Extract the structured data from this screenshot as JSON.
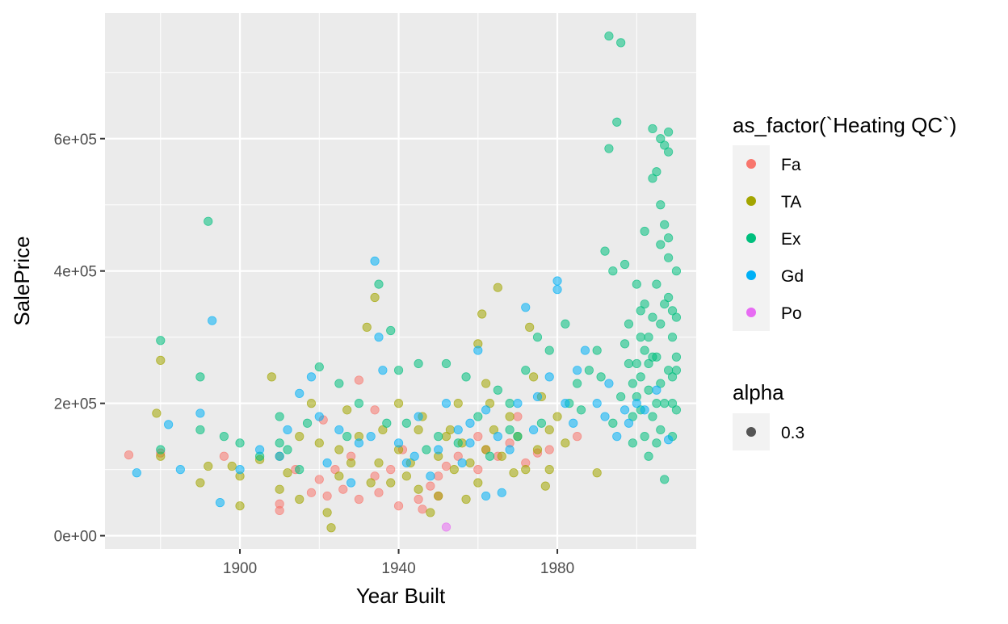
{
  "chart_data": {
    "type": "scatter",
    "title": "",
    "xlabel": "Year Built",
    "ylabel": "SalePrice",
    "xlim": [
      1866,
      2015
    ],
    "ylim": [
      -20000,
      790000
    ],
    "x_ticks": [
      {
        "value": 1900,
        "label": "1900"
      },
      {
        "value": 1940,
        "label": "1940"
      },
      {
        "value": 1980,
        "label": "1980"
      }
    ],
    "y_ticks": [
      {
        "value": 0,
        "label": "0e+00"
      },
      {
        "value": 200000,
        "label": "2e+05"
      },
      {
        "value": 400000,
        "label": "4e+05"
      },
      {
        "value": 600000,
        "label": "6e+05"
      }
    ],
    "grid": true,
    "point_alpha": 0.3,
    "legend": {
      "placement": "right",
      "color_title": "as_factor(`Heating QC`)",
      "alpha_title": "alpha",
      "alpha_value": "0.3",
      "alpha_color": "#000000"
    },
    "series": [
      {
        "name": "Fa",
        "color": "#F8766D",
        "points": [
          [
            1872,
            122000
          ],
          [
            1880,
            125000
          ],
          [
            1896,
            120000
          ],
          [
            1910,
            38000
          ],
          [
            1910,
            48000
          ],
          [
            1914,
            100000
          ],
          [
            1918,
            65000
          ],
          [
            1920,
            85000
          ],
          [
            1921,
            175000
          ],
          [
            1922,
            60000
          ],
          [
            1924,
            100000
          ],
          [
            1926,
            70000
          ],
          [
            1928,
            120000
          ],
          [
            1930,
            55000
          ],
          [
            1934,
            90000
          ],
          [
            1935,
            65000
          ],
          [
            1938,
            100000
          ],
          [
            1940,
            45000
          ],
          [
            1941,
            130000
          ],
          [
            1945,
            55000
          ],
          [
            1946,
            40000
          ],
          [
            1948,
            75000
          ],
          [
            1950,
            90000
          ],
          [
            1952,
            105000
          ],
          [
            1955,
            120000
          ],
          [
            1960,
            100000
          ],
          [
            1962,
            130000
          ],
          [
            1965,
            120000
          ],
          [
            1968,
            140000
          ],
          [
            1972,
            110000
          ],
          [
            1975,
            125000
          ],
          [
            1978,
            130000
          ],
          [
            1985,
            150000
          ],
          [
            1934,
            190000
          ],
          [
            1930,
            235000
          ],
          [
            1950,
            60000
          ],
          [
            1960,
            150000
          ],
          [
            1970,
            180000
          ]
        ]
      },
      {
        "name": "TA",
        "color": "#A3A500",
        "points": [
          [
            1880,
            265000
          ],
          [
            1879,
            185000
          ],
          [
            1880,
            120000
          ],
          [
            1890,
            80000
          ],
          [
            1892,
            105000
          ],
          [
            1898,
            105000
          ],
          [
            1900,
            45000
          ],
          [
            1900,
            90000
          ],
          [
            1908,
            240000
          ],
          [
            1910,
            70000
          ],
          [
            1910,
            120000
          ],
          [
            1915,
            150000
          ],
          [
            1920,
            140000
          ],
          [
            1922,
            35000
          ],
          [
            1923,
            12000
          ],
          [
            1925,
            90000
          ],
          [
            1928,
            110000
          ],
          [
            1930,
            150000
          ],
          [
            1932,
            315000
          ],
          [
            1934,
            360000
          ],
          [
            1935,
            110000
          ],
          [
            1936,
            160000
          ],
          [
            1938,
            80000
          ],
          [
            1940,
            130000
          ],
          [
            1940,
            200000
          ],
          [
            1942,
            90000
          ],
          [
            1945,
            70000
          ],
          [
            1946,
            180000
          ],
          [
            1948,
            35000
          ],
          [
            1950,
            60000
          ],
          [
            1950,
            120000
          ],
          [
            1952,
            150000
          ],
          [
            1954,
            100000
          ],
          [
            1955,
            200000
          ],
          [
            1956,
            140000
          ],
          [
            1958,
            110000
          ],
          [
            1960,
            290000
          ],
          [
            1961,
            335000
          ],
          [
            1962,
            130000
          ],
          [
            1964,
            160000
          ],
          [
            1965,
            375000
          ],
          [
            1966,
            120000
          ],
          [
            1968,
            180000
          ],
          [
            1970,
            150000
          ],
          [
            1972,
            100000
          ],
          [
            1973,
            315000
          ],
          [
            1975,
            130000
          ],
          [
            1976,
            210000
          ],
          [
            1978,
            160000
          ],
          [
            1978,
            100000
          ],
          [
            1980,
            180000
          ],
          [
            1982,
            140000
          ],
          [
            1990,
            95000
          ],
          [
            1960,
            80000
          ],
          [
            1945,
            160000
          ],
          [
            1925,
            130000
          ],
          [
            1915,
            55000
          ],
          [
            1912,
            95000
          ],
          [
            1918,
            200000
          ],
          [
            1957,
            55000
          ],
          [
            1962,
            230000
          ],
          [
            1969,
            95000
          ],
          [
            1974,
            240000
          ],
          [
            1953,
            160000
          ],
          [
            1943,
            110000
          ],
          [
            1933,
            80000
          ],
          [
            1927,
            190000
          ],
          [
            1905,
            115000
          ],
          [
            1963,
            200000
          ],
          [
            1977,
            75000
          ]
        ]
      },
      {
        "name": "Ex",
        "color": "#00BF7D",
        "points": [
          [
            1880,
            295000
          ],
          [
            1880,
            130000
          ],
          [
            1890,
            240000
          ],
          [
            1890,
            160000
          ],
          [
            1892,
            475000
          ],
          [
            1896,
            150000
          ],
          [
            1900,
            140000
          ],
          [
            1905,
            120000
          ],
          [
            1910,
            140000
          ],
          [
            1910,
            180000
          ],
          [
            1915,
            100000
          ],
          [
            1920,
            255000
          ],
          [
            1925,
            230000
          ],
          [
            1930,
            200000
          ],
          [
            1935,
            380000
          ],
          [
            1938,
            310000
          ],
          [
            1940,
            250000
          ],
          [
            1942,
            170000
          ],
          [
            1945,
            260000
          ],
          [
            1950,
            150000
          ],
          [
            1952,
            260000
          ],
          [
            1955,
            140000
          ],
          [
            1960,
            180000
          ],
          [
            1965,
            220000
          ],
          [
            1968,
            200000
          ],
          [
            1970,
            150000
          ],
          [
            1972,
            250000
          ],
          [
            1975,
            300000
          ],
          [
            1978,
            280000
          ],
          [
            1982,
            320000
          ],
          [
            1985,
            230000
          ],
          [
            1988,
            250000
          ],
          [
            1990,
            280000
          ],
          [
            1992,
            430000
          ],
          [
            1993,
            585000
          ],
          [
            1993,
            755000
          ],
          [
            1994,
            400000
          ],
          [
            1995,
            625000
          ],
          [
            1996,
            745000
          ],
          [
            1997,
            410000
          ],
          [
            1998,
            260000
          ],
          [
            1999,
            180000
          ],
          [
            2000,
            380000
          ],
          [
            2001,
            300000
          ],
          [
            2002,
            460000
          ],
          [
            2003,
            220000
          ],
          [
            2004,
            540000
          ],
          [
            2004,
            615000
          ],
          [
            2005,
            550000
          ],
          [
            2005,
            270000
          ],
          [
            2006,
            600000
          ],
          [
            2006,
            500000
          ],
          [
            2007,
            590000
          ],
          [
            2007,
            350000
          ],
          [
            2008,
            610000
          ],
          [
            2008,
            580000
          ],
          [
            2008,
            450000
          ],
          [
            2009,
            200000
          ],
          [
            2009,
            300000
          ],
          [
            2010,
            400000
          ],
          [
            2010,
            250000
          ],
          [
            2010,
            190000
          ],
          [
            2002,
            150000
          ],
          [
            1998,
            320000
          ],
          [
            2006,
            160000
          ],
          [
            2003,
            120000
          ],
          [
            2007,
            85000
          ],
          [
            2009,
            150000
          ],
          [
            1996,
            210000
          ],
          [
            2004,
            330000
          ],
          [
            2001,
            240000
          ],
          [
            2008,
            420000
          ],
          [
            2005,
            380000
          ],
          [
            1999,
            140000
          ],
          [
            2010,
            270000
          ],
          [
            2006,
            230000
          ],
          [
            1994,
            170000
          ],
          [
            2003,
            300000
          ],
          [
            2007,
            200000
          ],
          [
            2000,
            260000
          ],
          [
            2009,
            340000
          ],
          [
            2004,
            180000
          ],
          [
            2006,
            440000
          ],
          [
            2002,
            350000
          ],
          [
            1997,
            290000
          ],
          [
            2008,
            250000
          ],
          [
            2005,
            140000
          ],
          [
            2001,
            190000
          ],
          [
            2010,
            330000
          ],
          [
            1983,
            200000
          ],
          [
            1968,
            160000
          ],
          [
            1957,
            240000
          ],
          [
            1947,
            130000
          ],
          [
            1937,
            170000
          ],
          [
            1927,
            150000
          ],
          [
            1917,
            170000
          ],
          [
            1912,
            130000
          ],
          [
            1963,
            120000
          ],
          [
            1976,
            170000
          ],
          [
            1986,
            190000
          ],
          [
            1991,
            240000
          ],
          [
            2000,
            210000
          ],
          [
            2004,
            270000
          ],
          [
            2006,
            320000
          ],
          [
            2007,
            470000
          ],
          [
            2008,
            360000
          ],
          [
            2009,
            240000
          ],
          [
            2003,
            260000
          ],
          [
            2005,
            200000
          ],
          [
            2002,
            280000
          ],
          [
            2001,
            340000
          ],
          [
            1999,
            230000
          ]
        ]
      },
      {
        "name": "Gd",
        "color": "#00B0F6",
        "points": [
          [
            1874,
            95000
          ],
          [
            1882,
            168000
          ],
          [
            1885,
            100000
          ],
          [
            1890,
            185000
          ],
          [
            1893,
            325000
          ],
          [
            1895,
            50000
          ],
          [
            1900,
            100000
          ],
          [
            1905,
            130000
          ],
          [
            1910,
            120000
          ],
          [
            1915,
            215000
          ],
          [
            1918,
            240000
          ],
          [
            1920,
            180000
          ],
          [
            1925,
            160000
          ],
          [
            1930,
            140000
          ],
          [
            1934,
            415000
          ],
          [
            1935,
            300000
          ],
          [
            1936,
            250000
          ],
          [
            1940,
            140000
          ],
          [
            1942,
            110000
          ],
          [
            1945,
            180000
          ],
          [
            1950,
            130000
          ],
          [
            1952,
            200000
          ],
          [
            1955,
            160000
          ],
          [
            1958,
            170000
          ],
          [
            1960,
            280000
          ],
          [
            1962,
            190000
          ],
          [
            1965,
            150000
          ],
          [
            1966,
            65000
          ],
          [
            1970,
            200000
          ],
          [
            1972,
            345000
          ],
          [
            1975,
            210000
          ],
          [
            1978,
            240000
          ],
          [
            1980,
            385000
          ],
          [
            1980,
            372000
          ],
          [
            1982,
            200000
          ],
          [
            1985,
            250000
          ],
          [
            1987,
            280000
          ],
          [
            1990,
            200000
          ],
          [
            1992,
            180000
          ],
          [
            1995,
            150000
          ],
          [
            1998,
            170000
          ],
          [
            2000,
            200000
          ],
          [
            2002,
            190000
          ],
          [
            2005,
            220000
          ],
          [
            2008,
            145000
          ],
          [
            1962,
            60000
          ],
          [
            1948,
            90000
          ],
          [
            1928,
            80000
          ],
          [
            1912,
            160000
          ],
          [
            1956,
            110000
          ],
          [
            1968,
            130000
          ],
          [
            1974,
            160000
          ],
          [
            1984,
            170000
          ],
          [
            1993,
            230000
          ],
          [
            1997,
            190000
          ],
          [
            1958,
            140000
          ],
          [
            1944,
            120000
          ],
          [
            1922,
            110000
          ],
          [
            1933,
            150000
          ]
        ]
      },
      {
        "name": "Po",
        "color": "#E76BF3",
        "points": [
          [
            1952,
            13000
          ]
        ]
      }
    ]
  }
}
